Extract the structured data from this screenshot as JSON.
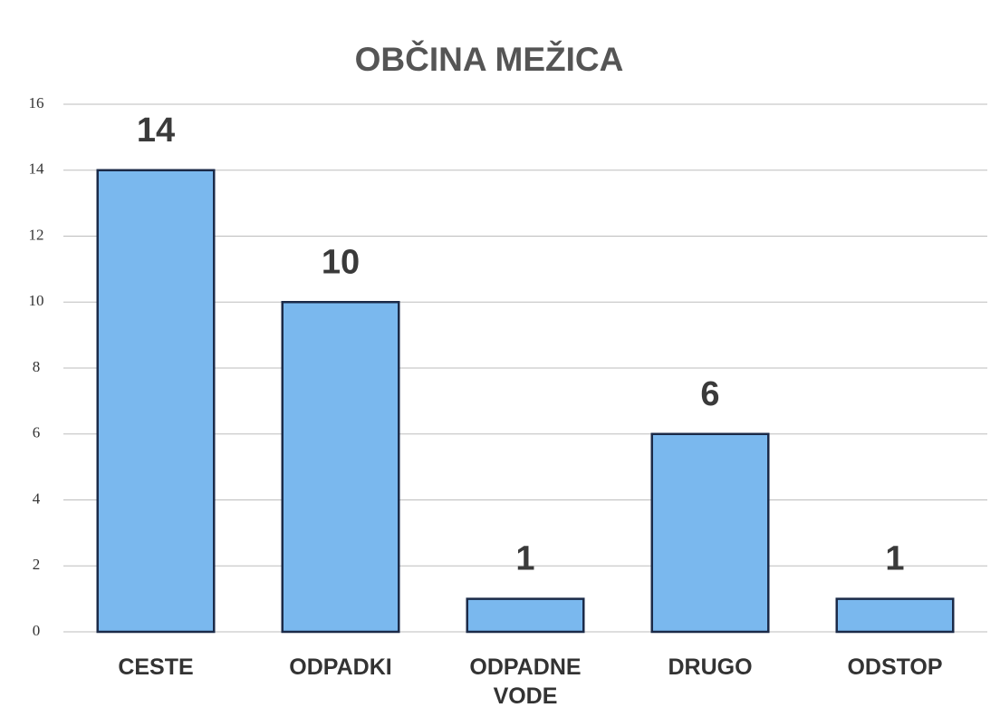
{
  "chart_data": {
    "type": "bar",
    "title": "OBČINA MEŽICA",
    "categories": [
      "CESTE",
      "ODPADKI",
      "ODPADNE VODE",
      "DRUGO",
      "ODSTOP"
    ],
    "values": [
      14,
      10,
      1,
      6,
      1
    ],
    "color": "#7ab8ee",
    "ylim": [
      0,
      16
    ],
    "yticks": [
      0,
      2,
      4,
      6,
      8,
      10,
      12,
      14,
      16
    ],
    "grid": true
  }
}
